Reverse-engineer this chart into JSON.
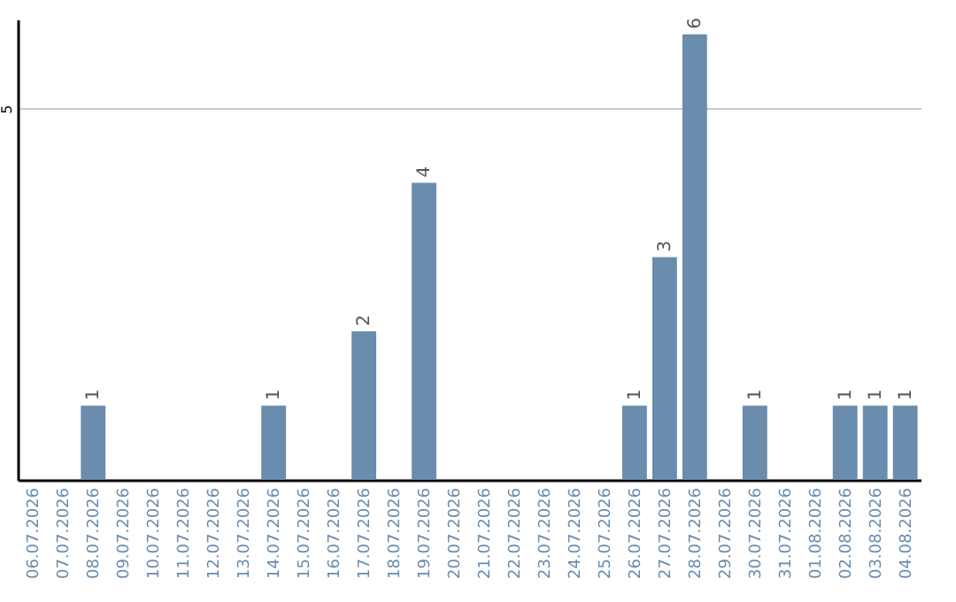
{
  "chart_data": {
    "type": "bar",
    "categories": [
      "06.07.2026",
      "07.07.2026",
      "08.07.2026",
      "09.07.2026",
      "10.07.2026",
      "11.07.2026",
      "12.07.2026",
      "13.07.2026",
      "14.07.2026",
      "15.07.2026",
      "16.07.2026",
      "17.07.2026",
      "18.07.2026",
      "19.07.2026",
      "20.07.2026",
      "21.07.2026",
      "22.07.2026",
      "23.07.2026",
      "24.07.2026",
      "25.07.2026",
      "26.07.2026",
      "27.07.2026",
      "28.07.2026",
      "29.07.2026",
      "30.07.2026",
      "31.07.2026",
      "01.08.2026",
      "02.08.2026",
      "03.08.2026",
      "04.08.2026"
    ],
    "values": [
      0,
      0,
      1,
      0,
      0,
      0,
      0,
      0,
      1,
      0,
      0,
      2,
      0,
      4,
      0,
      0,
      0,
      0,
      0,
      0,
      1,
      3,
      6,
      0,
      1,
      0,
      0,
      1,
      1,
      1
    ],
    "value_labels": [
      null,
      null,
      "1",
      null,
      null,
      null,
      null,
      null,
      "1",
      null,
      null,
      "2",
      null,
      "4",
      null,
      null,
      null,
      null,
      null,
      null,
      "1",
      "3",
      "6",
      null,
      "1",
      null,
      null,
      "1",
      "1",
      "1"
    ],
    "color": "#6a8cad",
    "ylim": [
      0,
      6.2
    ],
    "yticks": [
      5
    ],
    "grid": "y"
  }
}
